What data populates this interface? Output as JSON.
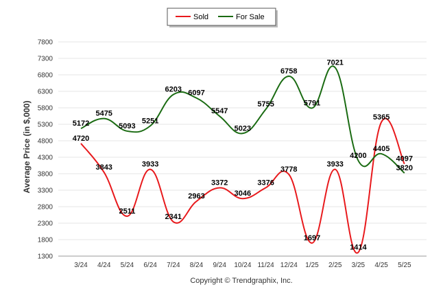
{
  "chart_data": {
    "type": "line",
    "title": "",
    "xlabel": "",
    "ylabel": "Average Price (in $,000)",
    "categories": [
      "3/24",
      "4/24",
      "5/24",
      "6/24",
      "7/24",
      "8/24",
      "9/24",
      "10/24",
      "11/24",
      "12/24",
      "1/25",
      "2/25",
      "3/25",
      "4/25",
      "5/25"
    ],
    "yticks": [
      1300,
      1800,
      2300,
      2800,
      3300,
      3800,
      4300,
      4800,
      5300,
      5800,
      6300,
      6800,
      7300,
      7800
    ],
    "ylim": [
      1300,
      7800
    ],
    "grid": true,
    "legend_position": "top-center",
    "series": [
      {
        "name": "Sold",
        "color": "#e8191c",
        "values": [
          4720,
          3843,
          2511,
          3933,
          2341,
          2963,
          3372,
          3046,
          3376,
          3778,
          1697,
          3933,
          1414,
          5365,
          4097
        ]
      },
      {
        "name": "For Sale",
        "color": "#1a6b12",
        "values": [
          5172,
          5475,
          5093,
          5251,
          6203,
          6097,
          5547,
          5023,
          5755,
          6758,
          5791,
          7021,
          4200,
          4405,
          3820
        ]
      }
    ]
  },
  "footer": {
    "copyright": "Copyright © Trendgraphix, Inc."
  }
}
